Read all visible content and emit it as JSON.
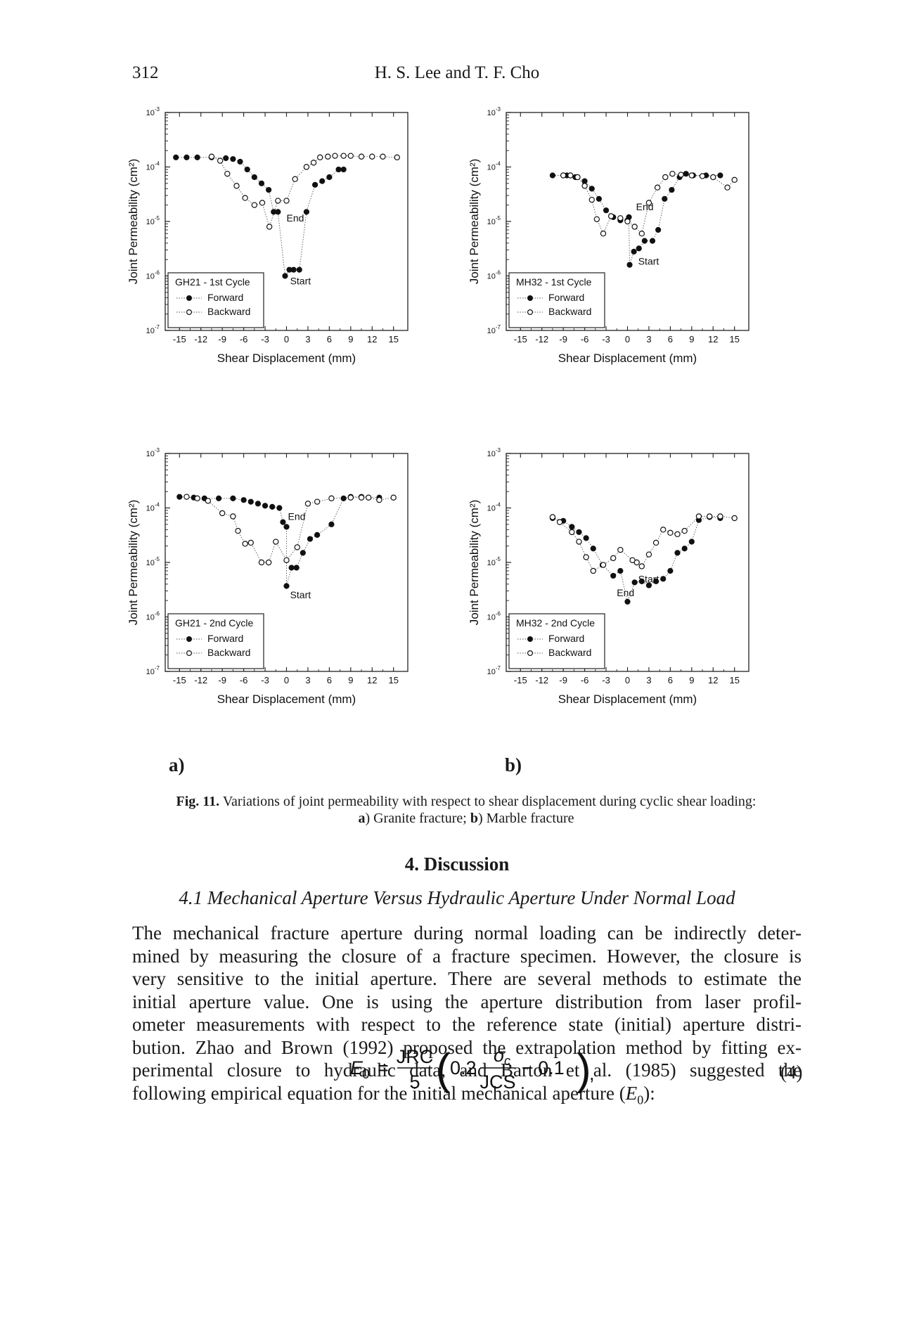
{
  "header": {
    "page_number": "312",
    "authors": "H. S. Lee and T. F. Cho"
  },
  "panel_labels": {
    "a": "a)",
    "b": "b)"
  },
  "chart_data": [
    {
      "type": "scatter",
      "id": "gh21-1",
      "title": "GH21 - 1st Cycle",
      "xlabel": "Shear Displacement (mm)",
      "ylabel": "Joint Permeability (cm²)",
      "xlim": [
        -17,
        17
      ],
      "ylim_log10": [
        -7,
        -3
      ],
      "yscale": "log",
      "xticks": [
        "-15",
        "-12",
        "-9",
        "-6",
        "-3",
        "0",
        "3",
        "6",
        "9",
        "12",
        "15"
      ],
      "yticks": [
        "10-3",
        "10-4",
        "10-5",
        "10-6",
        "10-7"
      ],
      "legend": [
        "Forward",
        "Backward"
      ],
      "annotations": [
        "End",
        "Start"
      ],
      "forward": [
        [
          -15.5,
          0.00015
        ],
        [
          -14,
          0.00015
        ],
        [
          -12.5,
          0.00015
        ],
        [
          -10.5,
          0.00015
        ],
        [
          -8.5,
          0.000145
        ],
        [
          -7.5,
          0.00014
        ],
        [
          -6.5,
          0.000125
        ],
        [
          -5.5,
          9e-05
        ],
        [
          -4.5,
          6.5e-05
        ],
        [
          -3.5,
          5e-05
        ],
        [
          -2.5,
          3.8e-05
        ],
        [
          -1.8,
          1.5e-05
        ],
        [
          -1.2,
          1.5e-05
        ],
        [
          -0.2,
          1e-06
        ],
        [
          0.4,
          1.3e-06
        ],
        [
          1,
          1.3e-06
        ],
        [
          1.8,
          1.3e-06
        ],
        [
          2.8,
          1.5e-05
        ],
        [
          4,
          4.7e-05
        ],
        [
          5,
          5.5e-05
        ],
        [
          6,
          6.5e-05
        ],
        [
          7.3,
          9e-05
        ],
        [
          8,
          9e-05
        ]
      ],
      "backward": [
        [
          15.5,
          0.00015
        ],
        [
          13.5,
          0.000155
        ],
        [
          12,
          0.000155
        ],
        [
          10.5,
          0.000155
        ],
        [
          9,
          0.00016
        ],
        [
          8,
          0.00016
        ],
        [
          6.8,
          0.00016
        ],
        [
          5.8,
          0.000155
        ],
        [
          4.7,
          0.00015
        ],
        [
          3.8,
          0.00012
        ],
        [
          2.8,
          0.0001
        ],
        [
          1.2,
          6e-05
        ],
        [
          0,
          2.4e-05
        ],
        [
          -1.2,
          2.4e-05
        ],
        [
          -2.4,
          8e-06
        ],
        [
          -3.4,
          2.2e-05
        ],
        [
          -4.5,
          2e-05
        ],
        [
          -5.8,
          2.7e-05
        ],
        [
          -7,
          4.5e-05
        ],
        [
          -8.3,
          7.5e-05
        ],
        [
          -9.3,
          0.00013
        ],
        [
          -10.5,
          0.000155
        ]
      ],
      "markers": {
        "End": [
          0,
          1e-05
        ],
        "Start": [
          0.5,
          7e-07
        ]
      }
    },
    {
      "type": "scatter",
      "id": "mh32-1",
      "title": "MH32 - 1st Cycle",
      "xlabel": "Shear Displacement (mm)",
      "ylabel": "Joint Permeability (cm²)",
      "xlim": [
        -17,
        17
      ],
      "ylim_log10": [
        -7,
        -3
      ],
      "yscale": "log",
      "xticks": [
        "-15",
        "-12",
        "-9",
        "-6",
        "-3",
        "0",
        "3",
        "6",
        "9",
        "12",
        "15"
      ],
      "yticks": [
        "10-3",
        "10-4",
        "10-5",
        "10-6",
        "10-7"
      ],
      "legend": [
        "Forward",
        "Backward"
      ],
      "annotations": [
        "End",
        "Start"
      ],
      "forward": [
        [
          -10.5,
          7e-05
        ],
        [
          -8.5,
          7e-05
        ],
        [
          -7.3,
          6.5e-05
        ],
        [
          -6,
          5.5e-05
        ],
        [
          -5,
          4e-05
        ],
        [
          -4,
          2.6e-05
        ],
        [
          -3,
          1.6e-05
        ],
        [
          -2,
          1.2e-05
        ],
        [
          -1,
          1.05e-05
        ],
        [
          0,
          1.05e-05
        ],
        [
          0.2,
          1.2e-05
        ],
        [
          0.3,
          1.6e-06
        ],
        [
          0.9,
          2.8e-06
        ],
        [
          1.6,
          3.2e-06
        ],
        [
          2.4,
          4.4e-06
        ],
        [
          3.5,
          4.4e-06
        ],
        [
          4.3,
          7e-06
        ],
        [
          5.2,
          2.6e-05
        ],
        [
          6.2,
          3.8e-05
        ],
        [
          7.3,
          6.5e-05
        ],
        [
          8.2,
          7.5e-05
        ],
        [
          9.2,
          7e-05
        ],
        [
          11,
          7e-05
        ],
        [
          13,
          7e-05
        ]
      ],
      "backward": [
        [
          15,
          5.8e-05
        ],
        [
          14,
          4.2e-05
        ],
        [
          12,
          6.5e-05
        ],
        [
          10.5,
          6.8e-05
        ],
        [
          9,
          7e-05
        ],
        [
          7.5,
          7.2e-05
        ],
        [
          6.3,
          7.5e-05
        ],
        [
          5.3,
          6.5e-05
        ],
        [
          4.2,
          4.2e-05
        ],
        [
          3,
          2.2e-05
        ],
        [
          2,
          6e-06
        ],
        [
          1,
          8e-06
        ],
        [
          0,
          1e-05
        ],
        [
          -1,
          1.15e-05
        ],
        [
          -2.3,
          1.25e-05
        ],
        [
          -3.4,
          6e-06
        ],
        [
          -4.3,
          1.1e-05
        ],
        [
          -5,
          2.5e-05
        ],
        [
          -6,
          4.5e-05
        ],
        [
          -7,
          6.5e-05
        ],
        [
          -8,
          7e-05
        ],
        [
          -9,
          7e-05
        ]
      ],
      "markers": {
        "End": [
          1.2,
          1.6e-05
        ],
        "Start": [
          1.5,
          1.6e-06
        ]
      }
    },
    {
      "type": "scatter",
      "id": "gh21-2",
      "title": "GH21 - 2nd Cycle",
      "xlabel": "Shear Displacement (mm)",
      "ylabel": "Joint Permeability (cm²)",
      "xlim": [
        -17,
        17
      ],
      "ylim_log10": [
        -7,
        -3
      ],
      "yscale": "log",
      "xticks": [
        "-15",
        "-12",
        "-9",
        "-6",
        "-3",
        "0",
        "3",
        "6",
        "9",
        "12",
        "15"
      ],
      "yticks": [
        "10-3",
        "10-4",
        "10-5",
        "10-6",
        "10-7"
      ],
      "legend": [
        "Forward",
        "Backward"
      ],
      "annotations": [
        "End",
        "Start"
      ],
      "forward": [
        [
          -15,
          0.00016
        ],
        [
          -13,
          0.000155
        ],
        [
          -11.5,
          0.00015
        ],
        [
          -9.5,
          0.00015
        ],
        [
          -7.5,
          0.00015
        ],
        [
          -6,
          0.00014
        ],
        [
          -5,
          0.00013
        ],
        [
          -4,
          0.00012
        ],
        [
          -3,
          0.00011
        ],
        [
          -2,
          0.000105
        ],
        [
          -1,
          0.0001
        ],
        [
          -0.5,
          5.5e-05
        ],
        [
          0,
          4.5e-05
        ],
        [
          0,
          3.7e-06
        ],
        [
          0.7,
          8e-06
        ],
        [
          1.4,
          8e-06
        ],
        [
          2.3,
          1.5e-05
        ],
        [
          3.3,
          2.7e-05
        ],
        [
          4.3,
          3.2e-05
        ],
        [
          6.3,
          5e-05
        ],
        [
          8,
          0.00015
        ],
        [
          9,
          0.00016
        ],
        [
          10.5,
          0.00016
        ],
        [
          13,
          0.000155
        ]
      ],
      "backward": [
        [
          15,
          0.000155
        ],
        [
          13,
          0.00014
        ],
        [
          11.5,
          0.000155
        ],
        [
          10.5,
          0.000155
        ],
        [
          9,
          0.000155
        ],
        [
          6.3,
          0.00015
        ],
        [
          4.3,
          0.00013
        ],
        [
          3,
          0.00012
        ],
        [
          1.5,
          1.9e-05
        ],
        [
          0,
          1.1e-05
        ],
        [
          -1.5,
          2.4e-05
        ],
        [
          -2.5,
          1e-05
        ],
        [
          -3.5,
          1e-05
        ],
        [
          -5,
          2.3e-05
        ],
        [
          -5.8,
          2.2e-05
        ],
        [
          -6.8,
          3.8e-05
        ],
        [
          -7.5,
          7e-05
        ],
        [
          -9,
          8e-05
        ],
        [
          -11,
          0.000135
        ],
        [
          -12.5,
          0.00015
        ],
        [
          -14,
          0.00016
        ]
      ],
      "markers": {
        "End": [
          0.2,
          6e-05
        ],
        "Start": [
          0.5,
          2.2e-06
        ]
      }
    },
    {
      "type": "scatter",
      "id": "mh32-2",
      "title": "MH32 - 2nd Cycle",
      "xlabel": "Shear Displacement (mm)",
      "ylabel": "Joint Permeability (cm²)",
      "xlim": [
        -17,
        17
      ],
      "ylim_log10": [
        -7,
        -3
      ],
      "yscale": "log",
      "xticks": [
        "-15",
        "-12",
        "-9",
        "-6",
        "-3",
        "0",
        "3",
        "6",
        "9",
        "12",
        "15"
      ],
      "yticks": [
        "10-3",
        "10-4",
        "10-5",
        "10-6",
        "10-7"
      ],
      "legend": [
        "Forward",
        "Backward"
      ],
      "annotations": [
        "End",
        "Start"
      ],
      "forward": [
        [
          -10.5,
          6.5e-05
        ],
        [
          -9,
          5.8e-05
        ],
        [
          -7.8,
          4.5e-05
        ],
        [
          -6.8,
          3.6e-05
        ],
        [
          -5.8,
          2.8e-05
        ],
        [
          -4.8,
          1.8e-05
        ],
        [
          -3.5,
          9e-06
        ],
        [
          -2,
          5.7e-06
        ],
        [
          -1,
          7e-06
        ],
        [
          0,
          1.9e-06
        ],
        [
          1,
          4.3e-06
        ],
        [
          2,
          4.5e-06
        ],
        [
          3,
          3.8e-06
        ],
        [
          4,
          4.5e-06
        ],
        [
          5,
          5e-06
        ],
        [
          6,
          7e-06
        ],
        [
          7,
          1.5e-05
        ],
        [
          8,
          1.8e-05
        ],
        [
          9,
          2.4e-05
        ],
        [
          10,
          6e-05
        ],
        [
          11.5,
          6.8e-05
        ],
        [
          13,
          6.5e-05
        ]
      ],
      "backward": [
        [
          15,
          6.5e-05
        ],
        [
          13,
          7e-05
        ],
        [
          11.5,
          7e-05
        ],
        [
          10,
          7e-05
        ],
        [
          8,
          3.8e-05
        ],
        [
          7,
          3.3e-05
        ],
        [
          6,
          3.5e-05
        ],
        [
          5,
          4e-05
        ],
        [
          4,
          2.3e-05
        ],
        [
          3,
          1.4e-05
        ],
        [
          2,
          8.5e-06
        ],
        [
          1.3,
          1e-05
        ],
        [
          0.7,
          1.1e-05
        ],
        [
          -1,
          1.7e-05
        ],
        [
          -2,
          1.2e-05
        ],
        [
          -3.4,
          9e-06
        ],
        [
          -4.8,
          7e-06
        ],
        [
          -5.8,
          1.25e-05
        ],
        [
          -6.8,
          2.4e-05
        ],
        [
          -7.8,
          3.6e-05
        ],
        [
          -9.5,
          5.5e-05
        ],
        [
          -10.5,
          6.8e-05
        ]
      ],
      "markers": {
        "End": [
          -1.5,
          2.4e-06
        ],
        "Start": [
          1.5,
          4.3e-06
        ]
      }
    }
  ],
  "caption": {
    "label": "Fig. 11.",
    "text": "Variations of joint permeability with respect to shear displacement during cyclic shear loading:",
    "a_label": "a",
    "a_text": ") Granite fracture; ",
    "b_label": "b",
    "b_text": ") Marble fracture"
  },
  "section": {
    "heading": "4. Discussion",
    "subheading": "4.1 Mechanical Aperture Versus Hydraulic Aperture Under Normal Load"
  },
  "paragraph_lines": [
    "The mechanical fracture aperture during normal loading can be indirectly deter-",
    "mined by measuring the closure of a fracture specimen. However, the closure is",
    "very sensitive to the initial aperture. There are several methods to estimate the",
    "initial aperture value. One is using the aperture distribution from laser profil-",
    "ometer measurements with respect to the reference state (initial) aperture distri-",
    "bution. Zhao and Brown (1992) proposed the extrapolation method by fitting ex-",
    "perimental closure to hydraulic data, and Barton et al. (1985) suggested the",
    "following empirical equation for the initial mechanical aperture (E0):"
  ],
  "equation": {
    "lhs": "E0",
    "equals": "=",
    "num1": "JRC",
    "den1": "5",
    "coef": "0.2",
    "num2": "σc",
    "den2": "JCS",
    "minus": "− 0.1",
    "trailing": ",",
    "number": "(4)"
  }
}
